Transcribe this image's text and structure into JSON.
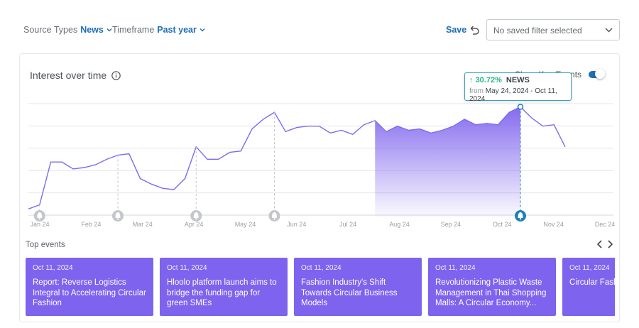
{
  "filters": {
    "source_types": {
      "label": "Source Types",
      "value": "News"
    },
    "timeframe": {
      "label": "Timeframe",
      "value": "Past year"
    },
    "save_label": "Save",
    "saved_filter_placeholder": "No saved filter selected"
  },
  "chart_card": {
    "title": "Interest over time",
    "toggle_label": "Show Key Events",
    "toggle_on": true,
    "tooltip": {
      "change": "30.72%",
      "direction": "up",
      "source": "NEWS",
      "from_label": "from",
      "range": "May 24, 2024 - Oct 11, 2024"
    },
    "top_events_label": "Top events"
  },
  "chart_data": {
    "type": "line",
    "x_ticks": [
      "Jan 24",
      "Feb 24",
      "Mar 24",
      "Apr 24",
      "May 24",
      "Jun 24",
      "Jul 24",
      "Aug 24",
      "Sep 24",
      "Oct 24",
      "Nov 24",
      "Dec 24"
    ],
    "series": [
      {
        "values": [
          6,
          9,
          40,
          40,
          35,
          36,
          38,
          42,
          45,
          46,
          28,
          24,
          21,
          20,
          28,
          51,
          42,
          42,
          47,
          48,
          64,
          71,
          76,
          62,
          65,
          66,
          66,
          61,
          63,
          60,
          67,
          70,
          62,
          66,
          63,
          64,
          61,
          63,
          66,
          71,
          67,
          68,
          67,
          76,
          80,
          72,
          66,
          67,
          51
        ]
      }
    ],
    "highlight_range": [
      "May 24, 2024",
      "Oct 11, 2024"
    ],
    "ylim": [
      0,
      90
    ],
    "grid": true,
    "event_markers": [
      "Jan 24",
      "Feb 24",
      "Apr 24",
      "May 24",
      "Oct 24"
    ],
    "active_marker": "Oct 24",
    "colors": {
      "line": "#7b6cf0",
      "fill": "#7e63ee",
      "marker": "#c4c6cc",
      "active_marker": "#1f7fb8"
    }
  },
  "top_events": [
    {
      "date": "Oct 11, 2024",
      "title": "Report: Reverse Logistics Integral to Accelerating Circular Fashion"
    },
    {
      "date": "Oct 11, 2024",
      "title": "Hloolo platform launch aims to bridge the funding gap for green SMEs"
    },
    {
      "date": "Oct 11, 2024",
      "title": "Fashion Industry's Shift Towards Circular Business Models"
    },
    {
      "date": "Oct 11, 2024",
      "title": "Revolutionizing Plastic Waste Management in Thai Shopping Malls: A Circular Economy..."
    },
    {
      "date": "Oct 11, 2024",
      "title": "Circular Fashion failing grade"
    }
  ],
  "colors": {
    "accent": "#1f6fb8",
    "event_card": "#7e63ee"
  }
}
